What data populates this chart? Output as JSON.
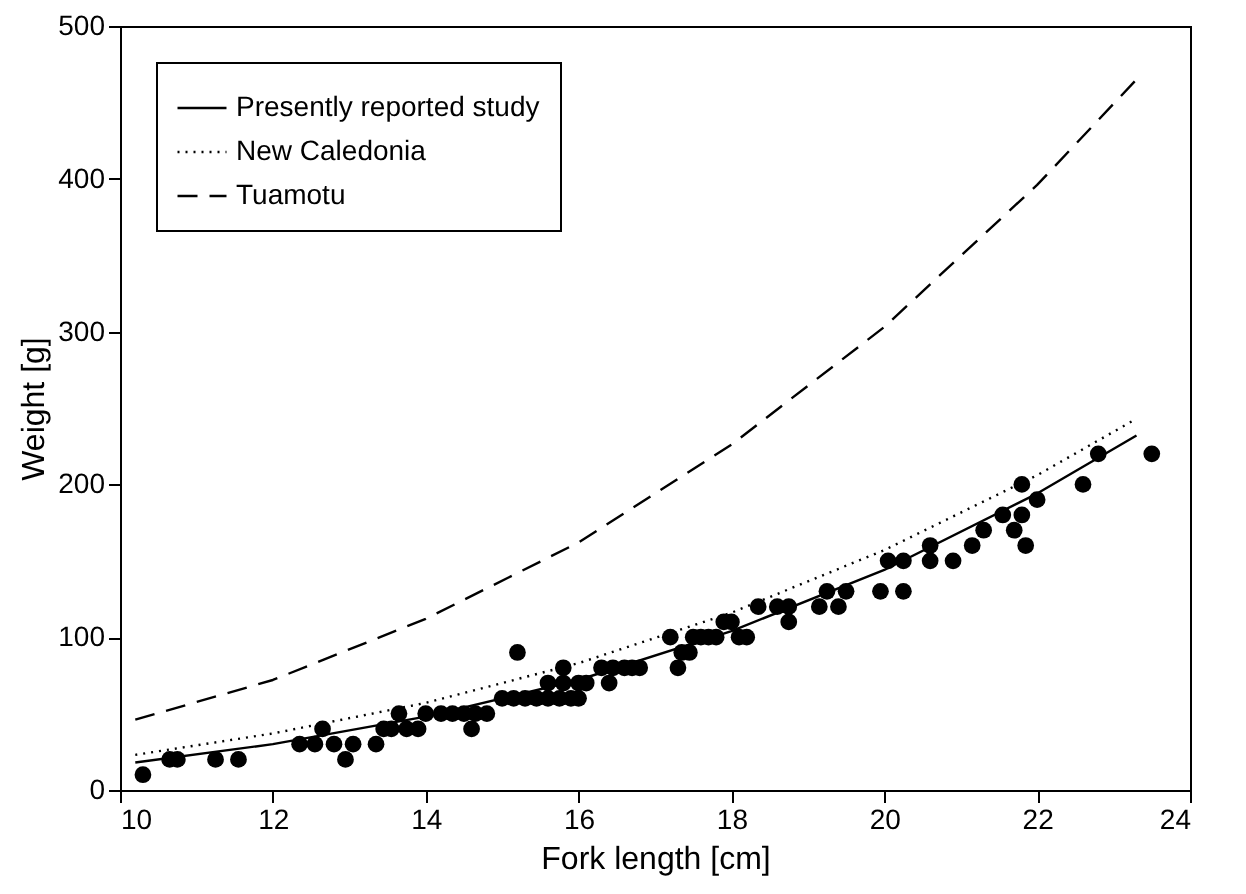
{
  "chart_data": {
    "type": "scatter",
    "xlabel": "Fork length [cm]",
    "ylabel": "Weight [g]",
    "xlim": [
      10,
      24
    ],
    "xticks": [
      10,
      12,
      14,
      16,
      18,
      20,
      22,
      24
    ],
    "ylim": [
      0,
      500
    ],
    "yticks": [
      0,
      100,
      200,
      300,
      400,
      500
    ],
    "grid": false,
    "legend": "top left",
    "series": [
      {
        "color": "#000000",
        "marker": "circle",
        "x": [
          10.3,
          10.65,
          10.75,
          11.25,
          11.55,
          12.35,
          12.55,
          12.65,
          12.8,
          12.95,
          13.05,
          13.35,
          13.45,
          13.55,
          13.65,
          13.75,
          13.9,
          14.0,
          14.2,
          14.35,
          14.5,
          14.6,
          14.65,
          14.8,
          15.0,
          15.15,
          15.2,
          15.3,
          15.45,
          15.6,
          15.6,
          15.75,
          15.8,
          15.8,
          15.9,
          16.0,
          16.0,
          16.1,
          16.3,
          16.4,
          16.45,
          16.6,
          16.7,
          16.8,
          17.2,
          17.3,
          17.35,
          17.45,
          17.5,
          17.6,
          17.7,
          17.8,
          17.9,
          18.0,
          18.1,
          18.2,
          18.35,
          18.6,
          18.75,
          18.75,
          19.15,
          19.25,
          19.4,
          19.5,
          19.95,
          20.05,
          20.25,
          20.25,
          20.6,
          20.6,
          20.9,
          21.15,
          21.3,
          21.55,
          21.7,
          21.8,
          21.8,
          21.85,
          22.0,
          22.6,
          22.8,
          23.5
        ],
        "values": [
          10,
          20,
          20,
          20,
          20,
          30,
          30,
          40,
          30,
          20,
          30,
          30,
          40,
          40,
          50,
          40,
          40,
          50,
          50,
          50,
          50,
          40,
          50,
          50,
          60,
          60,
          90,
          60,
          60,
          60,
          70,
          60,
          80,
          70,
          60,
          60,
          70,
          70,
          80,
          70,
          80,
          80,
          80,
          80,
          100,
          80,
          90,
          90,
          100,
          100,
          100,
          100,
          110,
          110,
          100,
          100,
          120,
          120,
          120,
          110,
          120,
          130,
          120,
          130,
          130,
          150,
          130,
          150,
          150,
          160,
          150,
          160,
          170,
          180,
          170,
          180,
          200,
          160,
          190,
          200,
          220,
          220
        ]
      },
      {
        "type": "line",
        "name": "Presently reported study",
        "color": "#000000",
        "line_style": "solid",
        "marker": "none",
        "x": [
          10.2,
          12,
          14,
          16,
          18,
          20,
          22,
          23.3
        ],
        "values": [
          18,
          30,
          48,
          72,
          104,
          144,
          194,
          232
        ]
      },
      {
        "type": "line",
        "name": "New Caledonia",
        "color": "#000000",
        "line_style": "dotted",
        "marker": "none",
        "x": [
          10.2,
          12,
          14,
          16,
          18,
          20,
          22,
          23.3
        ],
        "values": [
          23,
          37,
          57,
          83,
          116,
          157,
          206,
          243
        ]
      },
      {
        "type": "line",
        "name": "Tuamotu",
        "color": "#000000",
        "line_style": "dashed",
        "marker": "none",
        "x": [
          10.2,
          12,
          14,
          16,
          18,
          20,
          22,
          23.3
        ],
        "values": [
          46,
          72,
          112,
          162,
          226,
          303,
          396,
          465
        ]
      }
    ]
  }
}
